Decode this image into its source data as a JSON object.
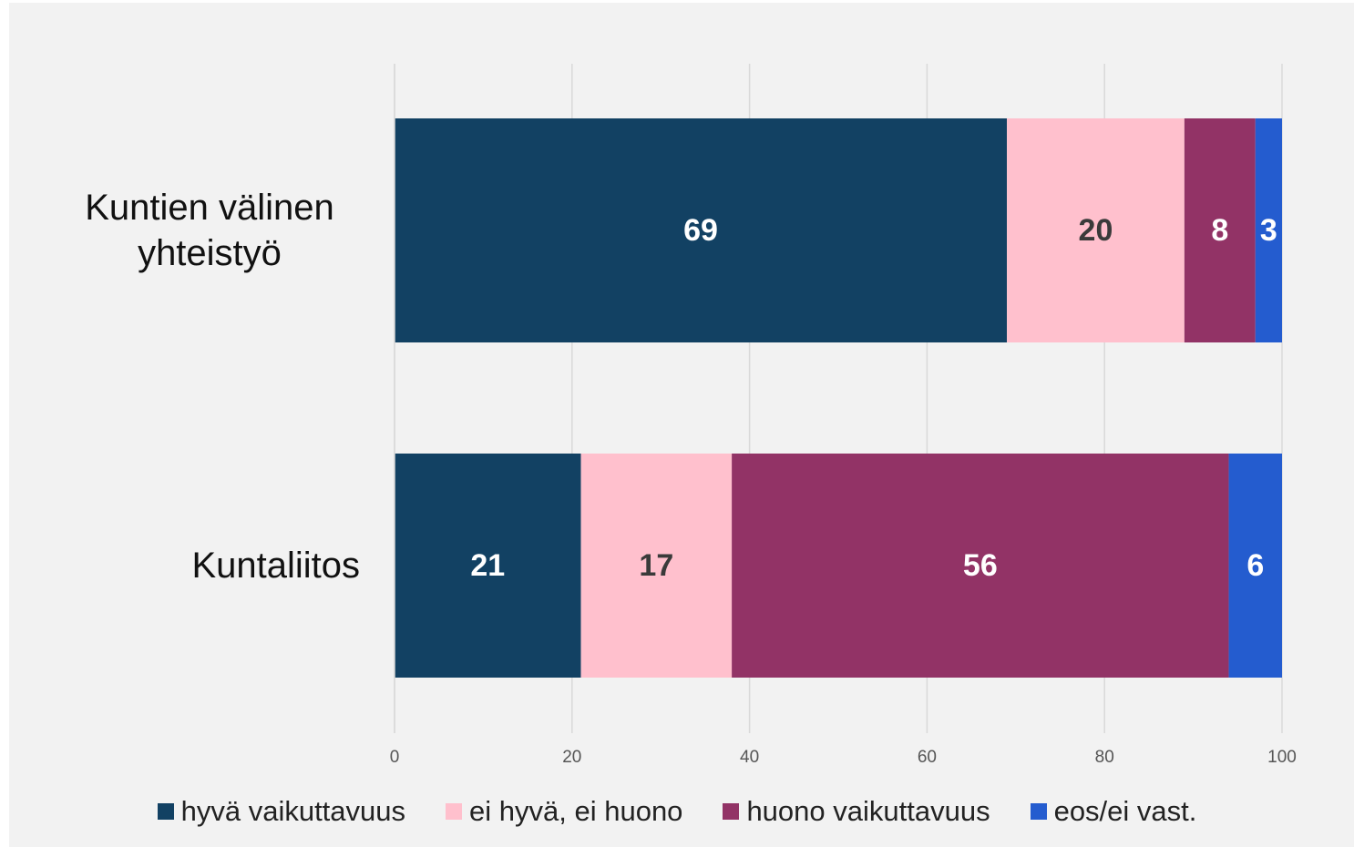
{
  "chart_data": {
    "type": "stacked-bar-horizontal",
    "categories": [
      "Kuntien välinen yhteistyö",
      "Kuntaliitos"
    ],
    "series": [
      {
        "name": "hyvä vaikuttavuus",
        "color": "#124163",
        "values": [
          69,
          21
        ]
      },
      {
        "name": "ei hyvä, ei huono",
        "color": "#ffc0cd",
        "values": [
          20,
          17
        ]
      },
      {
        "name": "huono vaikuttavuus",
        "color": "#923366",
        "values": [
          8,
          56
        ]
      },
      {
        "name": "eos/ei vast.",
        "color": "#245ccf",
        "values": [
          3,
          6
        ]
      }
    ],
    "xlim": [
      0,
      100
    ],
    "xticks": [
      0,
      20,
      40,
      60,
      80,
      100
    ],
    "grid": true,
    "legend": "bottom"
  }
}
